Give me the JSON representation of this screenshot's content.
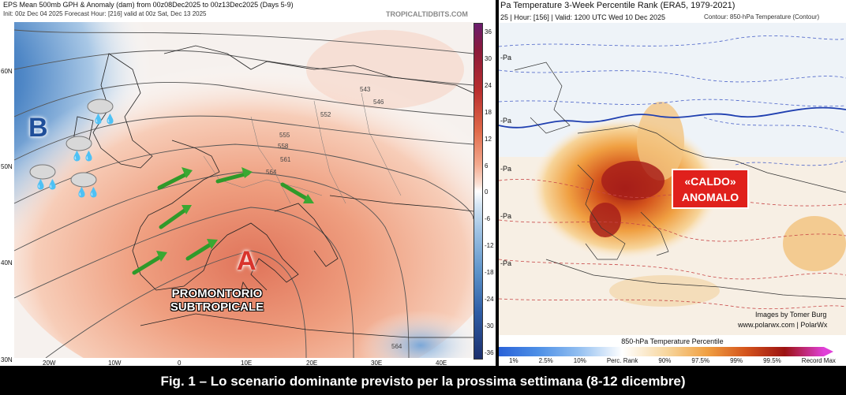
{
  "left": {
    "title": "EPS Mean 500mb GPH & Anomaly (dam) from 00z08Dec2025 to 00z13Dec2025 (Days 5-9)",
    "subtitle": "Init: 00z Dec 04 2025   Forecast Hour: [216]   valid at 00z Sat, Dec 13 2025",
    "watermark": "TROPICALTIDBITS.COM",
    "low_label": "B",
    "high_label": "A",
    "ridge_label_line1": "PROMONTORIO",
    "ridge_label_line2": "SUBTROPICALE",
    "lat_labels": [
      "60N",
      "50N",
      "40N",
      "30N"
    ],
    "lon_labels": [
      "20W",
      "10W",
      "0",
      "10E",
      "20E",
      "30E",
      "40E"
    ],
    "colorbar_ticks": [
      "36",
      "30",
      "24",
      "18",
      "12",
      "6",
      "0",
      "-6",
      "-12",
      "-18",
      "-24",
      "-30",
      "-36"
    ],
    "contour_labels": [
      "543",
      "546",
      "552",
      "555",
      "558",
      "561",
      "564",
      "564"
    ],
    "colors": {
      "low": "#2f6fb3",
      "high": "#d9534f",
      "arrow": "#3aa832"
    }
  },
  "right": {
    "title": "Pa Temperature 3-Week Percentile Rank (ERA5, 1979-2021)",
    "subtitle_left": "25 | Hour: [156] | Valid: 1200 UTC Wed 10 Dec 2025",
    "subtitle_right": "Contour: 850-hPa Temperature (Contour)",
    "side_labels": [
      "-Pa",
      "-Pa",
      "-Pa",
      "-Pa",
      "-Pa"
    ],
    "badge_line1": "«CALDO»",
    "badge_line2": "ANOMALO",
    "credit_line1": "Images by Tomer Burg",
    "credit_line2": "www.polarwx.com | PolarWx",
    "colorbar_title": "850-hPa Temperature Percentile",
    "colorbar_ticks": [
      "1%",
      "2.5%",
      "10%",
      "Perc. Rank",
      "90%",
      "97.5%",
      "99%",
      "99.5%",
      "Record Max"
    ],
    "colors": {
      "badge": "#e0201c",
      "warm": "#e8731c",
      "hot": "#a01414"
    }
  },
  "caption": "Fig. 1 – Lo scenario dominante previsto per la prossima settimana (8-12 dicembre)"
}
